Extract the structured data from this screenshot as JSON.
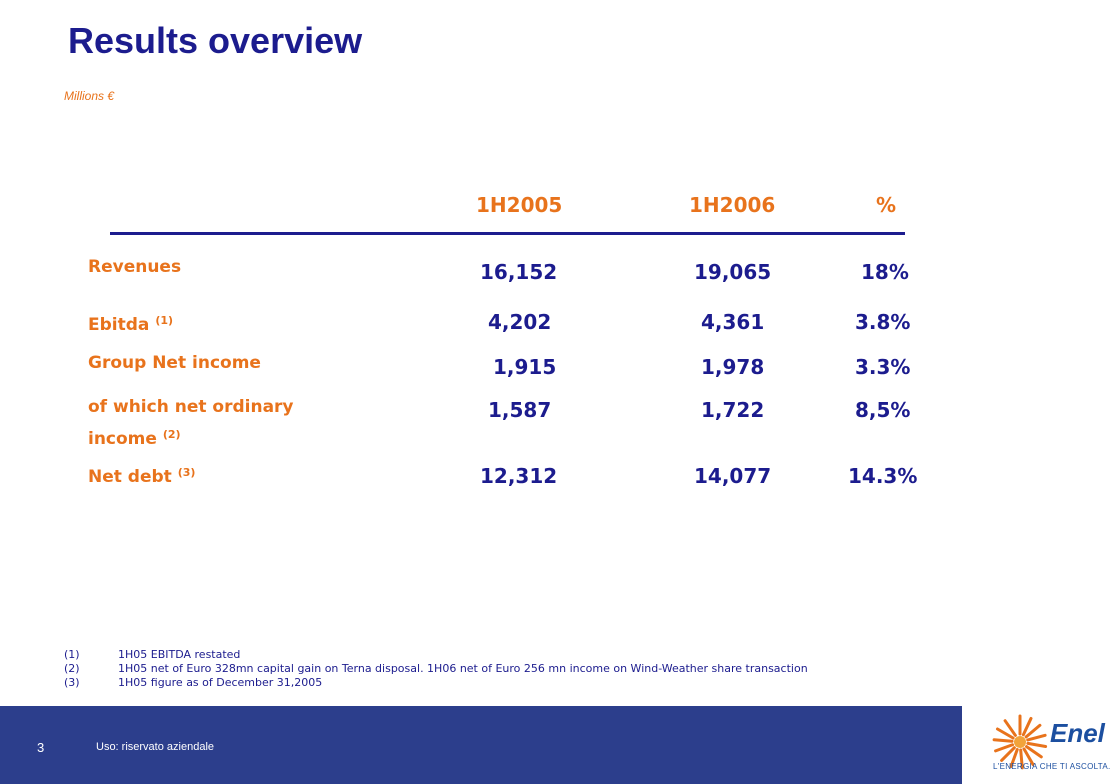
{
  "header": {
    "title": "Results overview",
    "units": "Millions €"
  },
  "table": {
    "columns": [
      "1H2005",
      "1H2006",
      "%"
    ],
    "rows": [
      {
        "label": "Revenues",
        "note": "",
        "v2005": "16,152",
        "v2006": "19,065",
        "pct": "18%"
      },
      {
        "label": "Ebitda",
        "note": "(1)",
        "v2005": "4,202",
        "v2006": "4,361",
        "pct": "3.8%"
      },
      {
        "label": "Group Net income",
        "note": "",
        "v2005": "1,915",
        "v2006": "1,978",
        "pct": "3.3%"
      },
      {
        "label": "of which net ordinary",
        "label2": "income",
        "note": "(2)",
        "v2005": "1,587",
        "v2006": "1,722",
        "pct": "8,5%"
      },
      {
        "label": "Net debt",
        "note": "(3)",
        "v2005": "12,312",
        "v2006": "14,077",
        "pct": "14.3%"
      }
    ]
  },
  "footnotes": [
    {
      "num": "(1)",
      "text": "1H05 EBITDA restated"
    },
    {
      "num": "(2)",
      "text": "1H05 net of Euro 328mn capital gain on Terna disposal. 1H06 net of Euro 256 mn income on Wind-Weather share transaction"
    },
    {
      "num": "(3)",
      "text": "1H05 figure as of December 31,2005"
    }
  ],
  "footer": {
    "page_number": "3",
    "classification": "Uso: riservato aziendale",
    "logo_text": "Enel",
    "logo_tagline": "L'ENERGIA CHE TI ASCOLTA."
  },
  "colors": {
    "navy": "#1c1c8e",
    "orange": "#e8731c",
    "footer_blue": "#2c3e8c"
  }
}
